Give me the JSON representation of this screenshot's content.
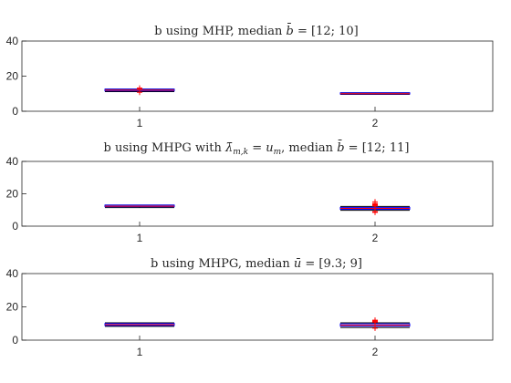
{
  "chart_data": [
    {
      "type": "box",
      "title": "b using MHP, median b̄ = [12; 10]",
      "xlabel": "",
      "ylabel": "",
      "categories": [
        "1",
        "2"
      ],
      "xticks": [
        "1",
        "2"
      ],
      "ylim": [
        0,
        40
      ],
      "yticks": [
        "0",
        "20",
        "40"
      ],
      "grid": false,
      "boxes": [
        {
          "category": "1",
          "min": 11.2,
          "q1": 11.6,
          "median": 12,
          "q3": 12.6,
          "max": 12.6,
          "outliers": [
            10.8,
            12.8,
            13.2
          ]
        },
        {
          "category": "2",
          "min": 9.6,
          "q1": 9.8,
          "median": 10,
          "q3": 10.5,
          "max": 10.5,
          "outliers": []
        }
      ]
    },
    {
      "type": "box",
      "title": "b using MHPG with λ̄m,k = um, median b̄ = [12; 11]",
      "xlabel": "",
      "ylabel": "",
      "categories": [
        "1",
        "2"
      ],
      "xticks": [
        "1",
        "2"
      ],
      "ylim": [
        0,
        40
      ],
      "yticks": [
        "0",
        "20",
        "40"
      ],
      "grid": false,
      "boxes": [
        {
          "category": "1",
          "min": 11.5,
          "q1": 12,
          "median": 12.3,
          "q3": 13,
          "max": 13,
          "outliers": []
        },
        {
          "category": "2",
          "min": 9.8,
          "q1": 10.4,
          "median": 11,
          "q3": 11.6,
          "max": 12.2,
          "outliers": [
            8.5,
            9,
            12.5,
            13,
            13.5,
            14,
            15
          ]
        }
      ]
    },
    {
      "type": "box",
      "title": "b using MHPG, median ū = [9.3; 9]",
      "xlabel": "",
      "ylabel": "",
      "categories": [
        "1",
        "2"
      ],
      "xticks": [
        "1",
        "2"
      ],
      "ylim": [
        0,
        40
      ],
      "yticks": [
        "0",
        "20",
        "40"
      ],
      "grid": false,
      "boxes": [
        {
          "category": "1",
          "min": 8.3,
          "q1": 8.8,
          "median": 9.3,
          "q3": 10,
          "max": 10.4,
          "outliers": []
        },
        {
          "category": "2",
          "min": 7.6,
          "q1": 8.4,
          "median": 9,
          "q3": 9.8,
          "max": 10.4,
          "outliers": [
            7.2,
            10.8,
            11.2,
            11.6,
            12
          ]
        }
      ]
    }
  ],
  "colors": {
    "axis": "#262626",
    "box": "#0000ff",
    "median": "#ff0000",
    "whisker": "#000000",
    "outlier": "#ff0000"
  }
}
